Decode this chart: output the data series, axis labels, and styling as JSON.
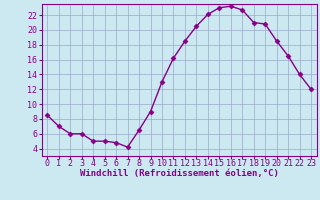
{
  "x": [
    0,
    1,
    2,
    3,
    4,
    5,
    6,
    7,
    8,
    9,
    10,
    11,
    12,
    13,
    14,
    15,
    16,
    17,
    18,
    19,
    20,
    21,
    22,
    23
  ],
  "y": [
    8.5,
    7.0,
    6.0,
    6.0,
    5.0,
    5.0,
    4.8,
    4.2,
    6.5,
    9.0,
    13.0,
    16.2,
    18.5,
    20.5,
    22.1,
    23.0,
    23.2,
    22.7,
    21.0,
    20.8,
    18.5,
    16.5,
    14.0,
    12.0
  ],
  "line_color": "#880088",
  "marker": "D",
  "marker_size": 2.5,
  "bg_color": "#cce8f0",
  "grid_color": "#99aacc",
  "xlabel": "Windchill (Refroidissement éolien,°C)",
  "xlabel_color": "#880088",
  "tick_color": "#880088",
  "spine_color": "#880088",
  "ylim": [
    3,
    23.5
  ],
  "yticks": [
    4,
    6,
    8,
    10,
    12,
    14,
    16,
    18,
    20,
    22
  ],
  "xlim": [
    -0.5,
    23.5
  ],
  "xticks": [
    0,
    1,
    2,
    3,
    4,
    5,
    6,
    7,
    8,
    9,
    10,
    11,
    12,
    13,
    14,
    15,
    16,
    17,
    18,
    19,
    20,
    21,
    22,
    23
  ],
  "font_family": "monospace",
  "label_fontsize": 6.5,
  "tick_fontsize": 6.0,
  "linewidth": 1.0
}
